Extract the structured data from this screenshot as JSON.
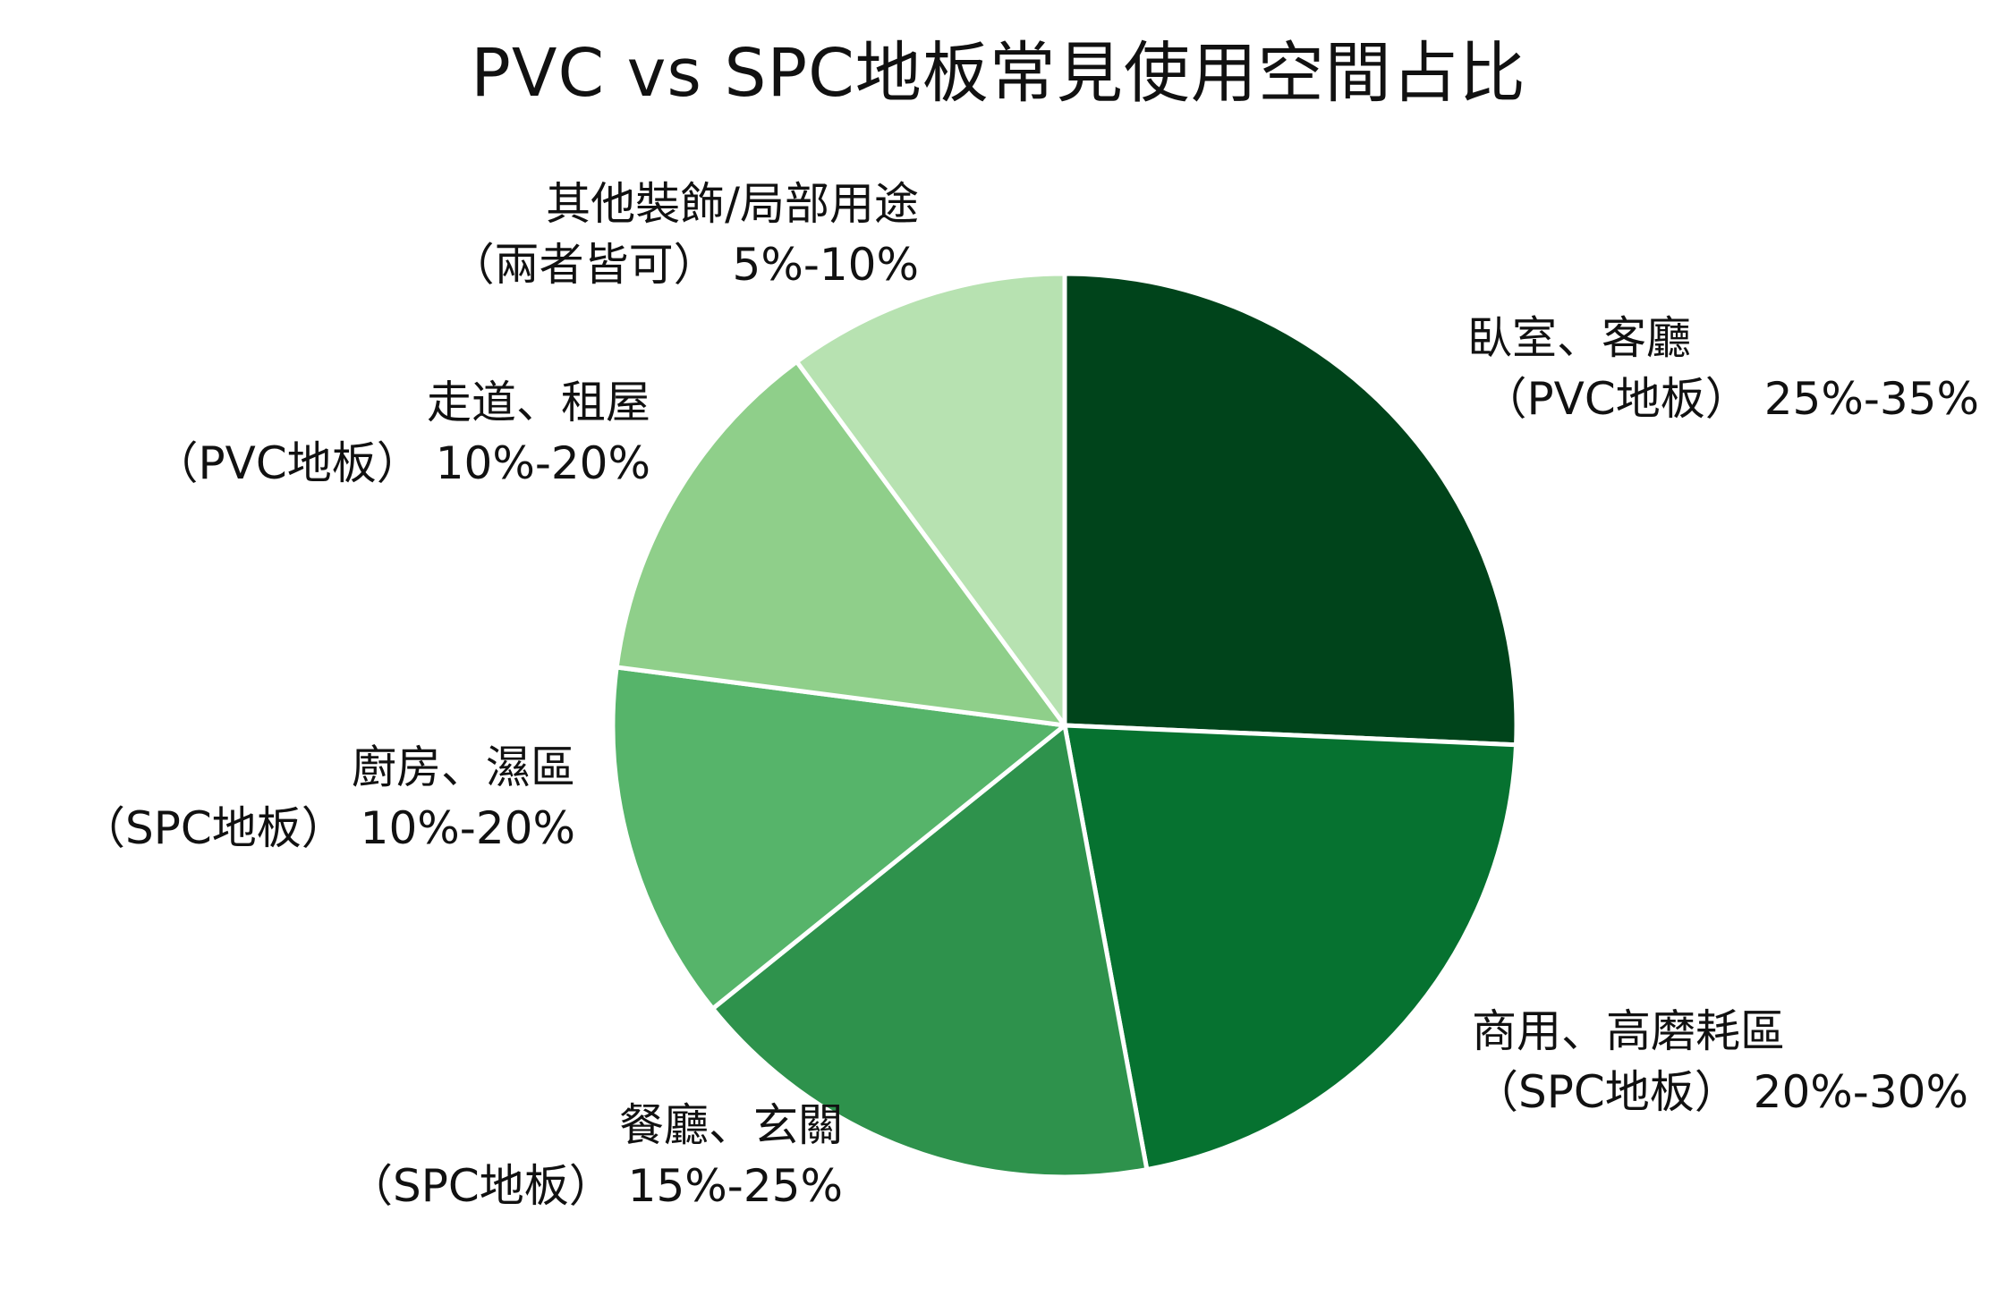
{
  "chart_data": {
    "type": "pie",
    "title": "PVC vs SPC地板常見使用空間占比",
    "slices": [
      {
        "line1": "臥室、客廳",
        "line2": "（PVC地板） 25%-35%",
        "value": 30,
        "color": "#00441b"
      },
      {
        "line1": "商用、高磨耗區",
        "line2": "（SPC地板） 20%-30%",
        "value": 25,
        "color": "#067230"
      },
      {
        "line1": "餐廳、玄關",
        "line2": "（SPC地板） 15%-25%",
        "value": 20,
        "color": "#2e924c"
      },
      {
        "line1": "廚房、濕區",
        "line2": "（SPC地板） 10%-20%",
        "value": 15,
        "color": "#56b46a"
      },
      {
        "line1": "走道、租屋",
        "line2": "（PVC地板） 10%-20%",
        "value": 15,
        "color": "#8fcf8a"
      },
      {
        "line1": "其他裝飾/局部用途",
        "line2": "（兩者皆可） 5%-10%",
        "value": 11.8,
        "color": "#b7e2b1"
      }
    ],
    "start_angle": "12 o'clock",
    "direction": "clockwise",
    "legend": "none"
  }
}
